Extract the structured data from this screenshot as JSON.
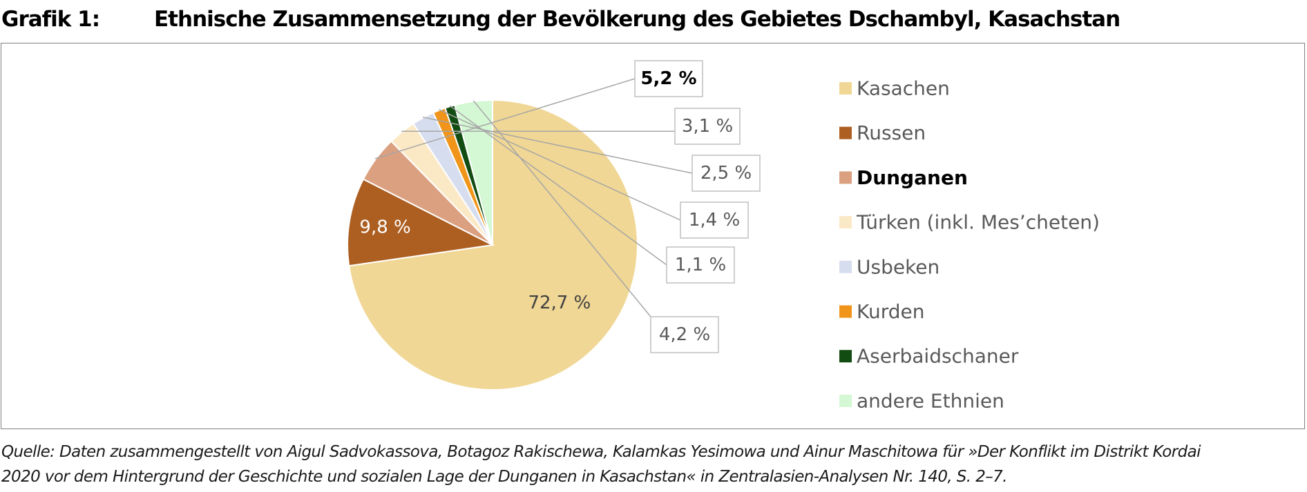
{
  "header": {
    "prefix": "Grafik 1:",
    "title": "Ethnische Zusammensetzung der Bevölkerung des Gebietes Dschambyl, Kasachstan"
  },
  "footer": {
    "source_line1": "Quelle: Daten zusammengestellt von Aigul Sadvokassova, Botagoz Rakischewa, Kalamkas Yesimowa und Ainur Maschitowa für »Der Konflikt im Distrikt Kordai",
    "source_line2": "2020 vor dem Hintergrund der Geschichte und sozialen Lage der Dunganen in Kasachstan« in Zentralasien-Analysen Nr. 140, S. 2–7."
  },
  "chart_data": {
    "type": "pie",
    "title": "Ethnische Zusammensetzung der Bevölkerung des Gebietes Dschambyl, Kasachstan",
    "legend_position": "right",
    "highlighted": "Dunganen",
    "slices": [
      {
        "label": "Kasachen",
        "value": 72.7,
        "display": "72,7 %",
        "color": "#F0D795"
      },
      {
        "label": "Russen",
        "value": 9.8,
        "display": "9,8 %",
        "color": "#AD5F22"
      },
      {
        "label": "Dunganen",
        "value": 5.2,
        "display": "5,2 %",
        "color": "#DBA080"
      },
      {
        "label": "Türken (inkl. Mes’cheten)",
        "value": 3.1,
        "display": "3,1 %",
        "color": "#FBE9C6"
      },
      {
        "label": "Usbeken",
        "value": 2.5,
        "display": "2,5 %",
        "color": "#D6DDEE"
      },
      {
        "label": "Kurden",
        "value": 1.4,
        "display": "1,4 %",
        "color": "#F0951A"
      },
      {
        "label": "Aserbaidschaner",
        "value": 1.1,
        "display": "1,1 %",
        "color": "#124C12"
      },
      {
        "label": "andere Ethnien",
        "value": 4.2,
        "display": "4,2 %",
        "color": "#D4F7D4"
      }
    ]
  }
}
